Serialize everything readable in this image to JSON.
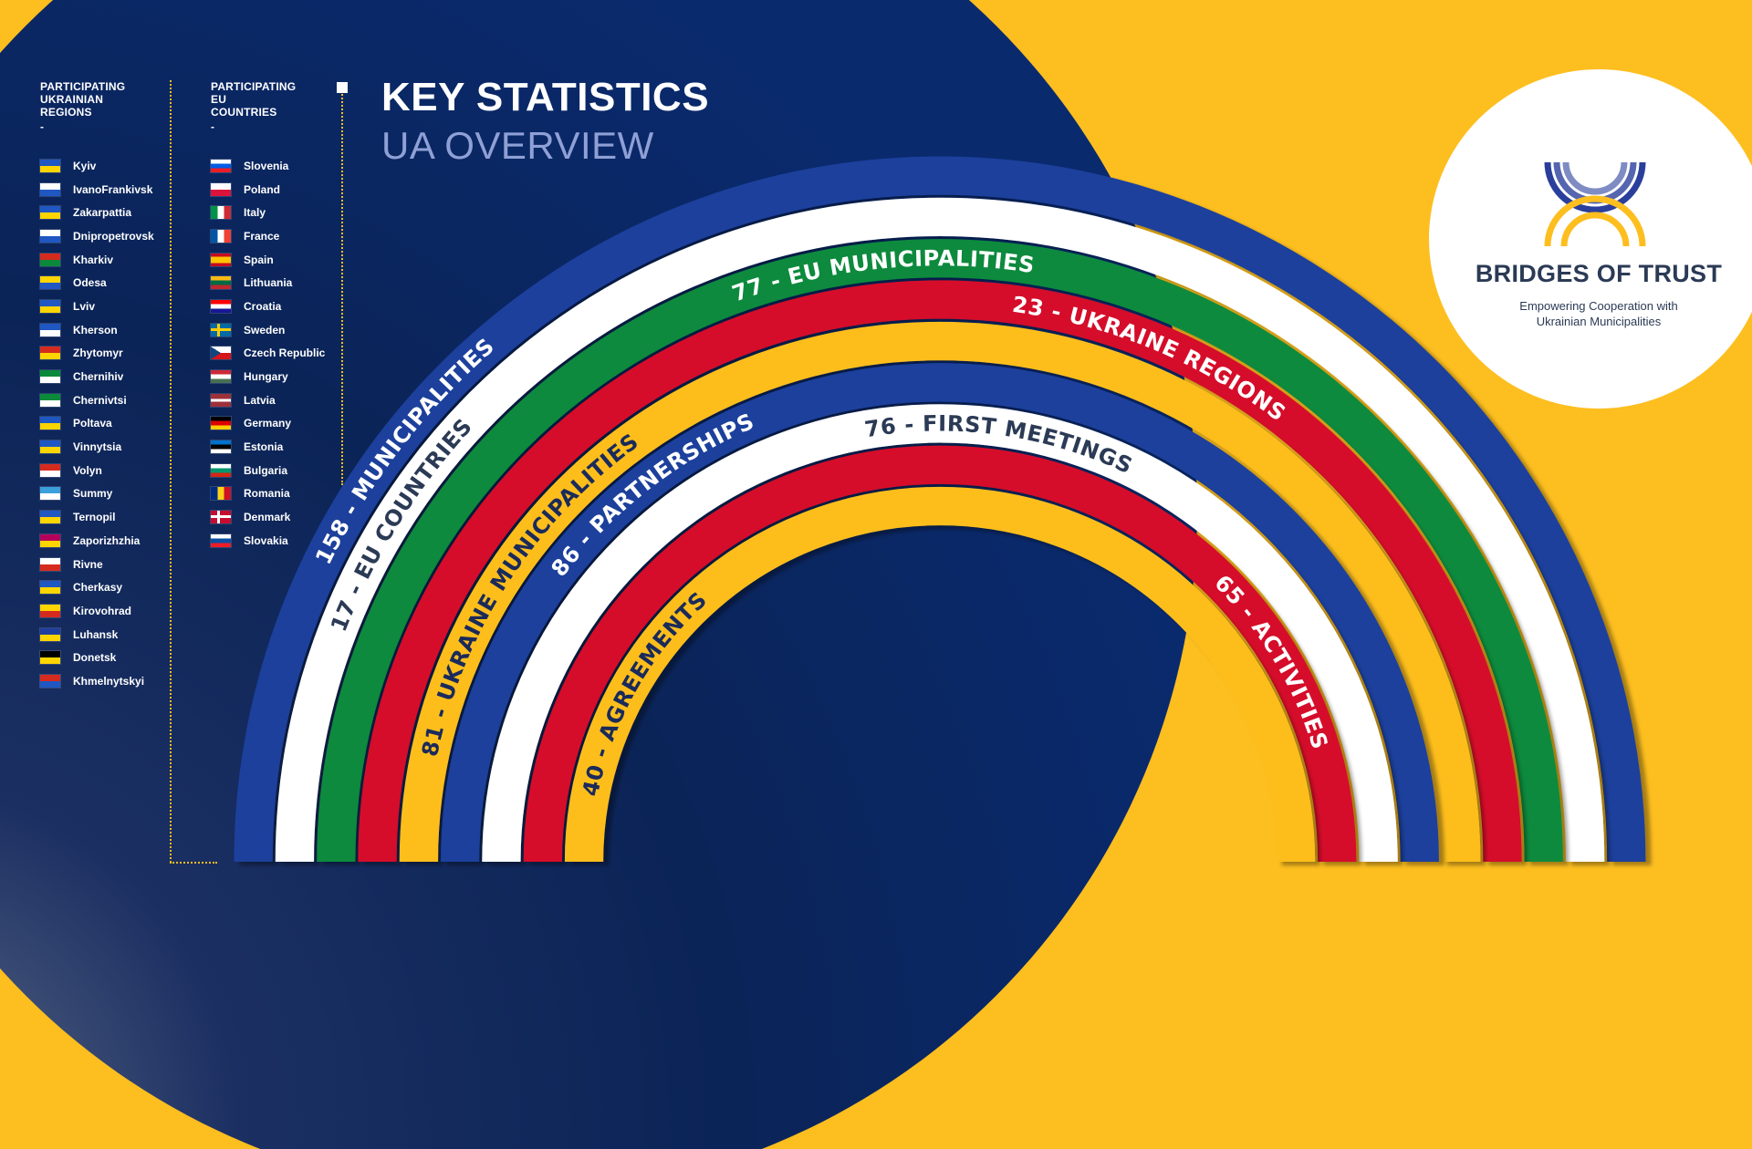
{
  "header": {
    "title": "KEY STATISTICS",
    "subtitle": "UA OVERVIEW"
  },
  "regions": {
    "heading_line1": "PARTICIPATING",
    "heading_line2": "UKRAINIAN",
    "heading_line3": "REGIONS",
    "dash": "-",
    "items": [
      {
        "name": "Kyiv",
        "flag": "kyiv-flag-icon",
        "colors": [
          "#1f57c3",
          "#ffd500"
        ]
      },
      {
        "name": "IvanoFrankivsk",
        "flag": "ivano-frankivsk-flag-icon",
        "colors": [
          "#ffffff",
          "#1f57c3"
        ]
      },
      {
        "name": "Zakarpattia",
        "flag": "zakarpattia-flag-icon",
        "colors": [
          "#1f57c3",
          "#ffd500"
        ]
      },
      {
        "name": "Dnipropetrovsk",
        "flag": "dnipropetrovsk-flag-icon",
        "colors": [
          "#ffffff",
          "#1f57c3"
        ]
      },
      {
        "name": "Kharkiv",
        "flag": "kharkiv-flag-icon",
        "colors": [
          "#d52b1e",
          "#0a8a3a"
        ]
      },
      {
        "name": "Odesa",
        "flag": "odesa-flag-icon",
        "colors": [
          "#ffd500",
          "#1f57c3"
        ]
      },
      {
        "name": "Lviv",
        "flag": "lviv-flag-icon",
        "colors": [
          "#1f57c3",
          "#ffd500"
        ]
      },
      {
        "name": "Kherson",
        "flag": "kherson-flag-icon",
        "colors": [
          "#1f57c3",
          "#ffffff"
        ]
      },
      {
        "name": "Zhytomyr",
        "flag": "zhytomyr-flag-icon",
        "colors": [
          "#d52b1e",
          "#ffd500"
        ]
      },
      {
        "name": "Chernihiv",
        "flag": "chernihiv-flag-icon",
        "colors": [
          "#0a8a3a",
          "#ffffff"
        ]
      },
      {
        "name": "Chernivtsi",
        "flag": "chernivtsi-flag-icon",
        "colors": [
          "#0a8a3a",
          "#ffffff"
        ]
      },
      {
        "name": "Poltava",
        "flag": "poltava-flag-icon",
        "colors": [
          "#1f57c3",
          "#ffd500"
        ]
      },
      {
        "name": "Vinnytsia",
        "flag": "vinnytsia-flag-icon",
        "colors": [
          "#1f57c3",
          "#ffd500"
        ]
      },
      {
        "name": "Volyn",
        "flag": "volyn-flag-icon",
        "colors": [
          "#d52b1e",
          "#ffffff"
        ]
      },
      {
        "name": "Summy",
        "flag": "sumy-flag-icon",
        "colors": [
          "#3aa0dc",
          "#ffffff"
        ]
      },
      {
        "name": "Ternopil",
        "flag": "ternopil-flag-icon",
        "colors": [
          "#1f57c3",
          "#ffd500"
        ]
      },
      {
        "name": "Zaporizhzhia",
        "flag": "zaporizhzhia-flag-icon",
        "colors": [
          "#b4005a",
          "#ffd500"
        ]
      },
      {
        "name": "Rivne",
        "flag": "rivne-flag-icon",
        "colors": [
          "#ffffff",
          "#d52b1e"
        ]
      },
      {
        "name": "Cherkasy",
        "flag": "cherkasy-flag-icon",
        "colors": [
          "#1f57c3",
          "#ffd500"
        ]
      },
      {
        "name": "Kirovohrad",
        "flag": "kirovohrad-flag-icon",
        "colors": [
          "#ffd500",
          "#d52b1e"
        ]
      },
      {
        "name": "Luhansk",
        "flag": "luhansk-flag-icon",
        "colors": [
          "#1f3fa0",
          "#ffd500"
        ]
      },
      {
        "name": "Donetsk",
        "flag": "donetsk-flag-icon",
        "colors": [
          "#000000",
          "#ffd500"
        ]
      },
      {
        "name": "Khmelnytskyi",
        "flag": "khmelnytskyi-flag-icon",
        "colors": [
          "#d52b1e",
          "#1f57c3"
        ]
      }
    ]
  },
  "countries": {
    "heading_line1": "PARTICIPATING",
    "heading_line2": "EU",
    "heading_line3": "COUNTRIES",
    "dash": "-",
    "items": [
      {
        "name": "Slovenia",
        "flag": "slovenia-flag-icon",
        "colors": [
          "#ffffff",
          "#005ce6",
          "#ed1c24"
        ]
      },
      {
        "name": "Poland",
        "flag": "poland-flag-icon",
        "colors": [
          "#ffffff",
          "#dc143c"
        ]
      },
      {
        "name": "Italy",
        "flag": "italy-flag-icon",
        "colors": [
          "#009246",
          "#ffffff",
          "#ce2b37"
        ],
        "vertical": true
      },
      {
        "name": "France",
        "flag": "france-flag-icon",
        "colors": [
          "#0055a4",
          "#ffffff",
          "#ef4135"
        ],
        "vertical": true
      },
      {
        "name": "Spain",
        "flag": "spain-flag-icon",
        "colors": [
          "#c60b1e",
          "#ffc400",
          "#ffc400",
          "#c60b1e"
        ]
      },
      {
        "name": "Lithuania",
        "flag": "lithuania-flag-icon",
        "colors": [
          "#fdb913",
          "#006a44",
          "#c1272d"
        ]
      },
      {
        "name": "Croatia",
        "flag": "croatia-flag-icon",
        "colors": [
          "#ff0000",
          "#ffffff",
          "#171796"
        ]
      },
      {
        "name": "Sweden",
        "flag": "sweden-flag-icon",
        "colors": [
          "#006aa7",
          "#fecc00"
        ],
        "cross": true
      },
      {
        "name": "Czech Republic",
        "flag": "czech-flag-icon",
        "colors": [
          "#ffffff",
          "#d7141a",
          "#11457e"
        ],
        "czech": true
      },
      {
        "name": "Hungary",
        "flag": "hungary-flag-icon",
        "colors": [
          "#ce2939",
          "#ffffff",
          "#477050"
        ]
      },
      {
        "name": "Latvia",
        "flag": "latvia-flag-icon",
        "colors": [
          "#9e3039",
          "#9e3039",
          "#ffffff",
          "#9e3039",
          "#9e3039"
        ]
      },
      {
        "name": "Germany",
        "flag": "germany-flag-icon",
        "colors": [
          "#000000",
          "#dd0000",
          "#ffce00"
        ]
      },
      {
        "name": "Estonia",
        "flag": "estonia-flag-icon",
        "colors": [
          "#0072ce",
          "#000000",
          "#ffffff"
        ]
      },
      {
        "name": "Bulgaria",
        "flag": "bulgaria-flag-icon",
        "colors": [
          "#ffffff",
          "#00966e",
          "#d62612"
        ]
      },
      {
        "name": "Romania",
        "flag": "romania-flag-icon",
        "colors": [
          "#002b7f",
          "#fcd116",
          "#ce1126"
        ],
        "vertical": true
      },
      {
        "name": "Denmark",
        "flag": "denmark-flag-icon",
        "colors": [
          "#c60c30",
          "#ffffff"
        ],
        "cross": true
      },
      {
        "name": "Slovakia",
        "flag": "slovakia-flag-icon",
        "colors": [
          "#ffffff",
          "#0b4ea2",
          "#ee1c25"
        ]
      }
    ]
  },
  "arcs": [
    {
      "label": "158 - MUNICIPALITIES",
      "color": "#1b3f9c",
      "text_color": "#ffffff",
      "label_span": [
        182,
        103
      ]
    },
    {
      "label": "17 - EU COUNTRIES",
      "color": "#ffffff",
      "text_color": "#2b3a55",
      "label_span": [
        176,
        120
      ]
    },
    {
      "label": "77 - EU MUNICIPALITIES",
      "color": "#0a8a3e",
      "text_color": "#ffffff",
      "label_span": [
        118,
        73
      ]
    },
    {
      "label": "23 - UKRAINE REGIONS",
      "color": "#d5102a",
      "text_color": "#ffffff",
      "label_span": [
        91,
        44
      ]
    },
    {
      "label": "81 - UKRAINE MUNICIPALITIES",
      "color": "#fdbe1f",
      "text_color": "#1a2a5a",
      "label_span": [
        181,
        113
      ]
    },
    {
      "label": "86 - PARTNERSHIPS",
      "color": "#1b3f9c",
      "text_color": "#ffffff",
      "label_span": [
        150,
        106
      ]
    },
    {
      "label": "76 - FIRST MEETINGS",
      "color": "#ffffff",
      "text_color": "#2b3a55",
      "label_span": [
        102,
        62
      ]
    },
    {
      "label": "65 - ACTIVITIES",
      "color": "#d5102a",
      "text_color": "#ffffff",
      "label_span": [
        50,
        12
      ]
    },
    {
      "label": "40 - AGREEMENTS",
      "color": "#fdbe1f",
      "text_color": "#1a2a5a",
      "label_span": [
        178,
        123
      ]
    }
  ],
  "logo": {
    "title": "BRIDGES OF TRUST",
    "subtitle_line1": "Empowering Cooperation with",
    "subtitle_line2": "Ukrainian Municipalities",
    "icon": "bridges-of-trust-logo-icon",
    "blue": "#2a3f9c",
    "yellow": "#fdbe1f"
  },
  "palette": {
    "background_yellow": "#fdbe1f",
    "navy": "#0a2456"
  }
}
